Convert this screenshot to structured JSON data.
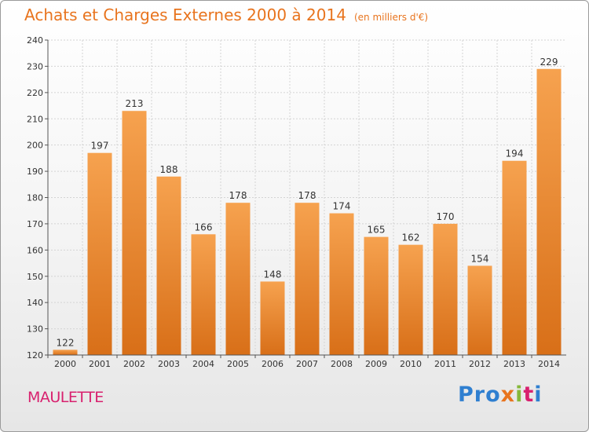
{
  "header": {
    "title": "Achats et Charges Externes 2000 à 2014",
    "subtitle": "(en milliers d'€)"
  },
  "footer": {
    "place": "MAULETTE",
    "logo": [
      "Pro",
      "x",
      "i",
      "t",
      "i"
    ]
  },
  "colors": {
    "bar_top": "#f6a24f",
    "bar_bottom": "#d86f18",
    "title": "#e8741e",
    "place": "#d8206e"
  },
  "chart_data": {
    "type": "bar",
    "categories": [
      "2000",
      "2001",
      "2002",
      "2003",
      "2004",
      "2005",
      "2006",
      "2007",
      "2008",
      "2009",
      "2010",
      "2011",
      "2012",
      "2013",
      "2014"
    ],
    "values": [
      122,
      197,
      213,
      188,
      166,
      178,
      148,
      178,
      174,
      165,
      162,
      170,
      154,
      194,
      229
    ],
    "ylim": [
      120,
      240
    ],
    "yticks": [
      120,
      130,
      140,
      150,
      160,
      170,
      180,
      190,
      200,
      210,
      220,
      230,
      240
    ],
    "grid": true,
    "legend": "none"
  }
}
